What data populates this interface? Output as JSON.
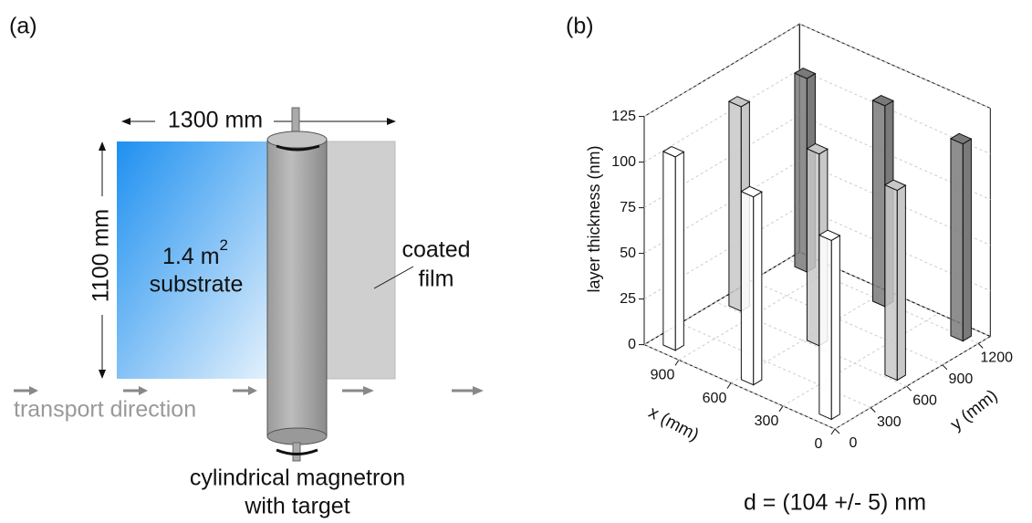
{
  "panel_a": {
    "label": "(a)",
    "width_label": "1300 mm",
    "height_label": "1100 mm",
    "area": "1.4 m",
    "area_exponent": "2",
    "substrate": "substrate",
    "coated_lines": [
      "coated",
      "film"
    ],
    "transport": "transport direction",
    "magnetron_lines": [
      "cylindrical magnetron",
      "with target"
    ]
  },
  "chart_data": {
    "type": "bar3d",
    "label": "(b)",
    "zlabel": "layer thickness (nm)",
    "xlabel": "x (mm)",
    "ylabel": "y (mm)",
    "annotation": "d = (104 +/- 5) nm",
    "xlim": [
      0,
      1100
    ],
    "ylim": [
      0,
      1300
    ],
    "zlim": [
      0,
      125
    ],
    "xticks": [
      0,
      300,
      600,
      900
    ],
    "yticks": [
      0,
      300,
      600,
      900,
      1200
    ],
    "zticks": [
      0,
      25,
      50,
      75,
      100,
      125
    ],
    "series": [
      {
        "color": "#ffffff",
        "x": [
          100,
          550,
          1000
        ],
        "y": [
          100,
          100,
          100
        ],
        "values": [
          98,
          103,
          106
        ]
      },
      {
        "color": "#c8c8c8",
        "x": [
          100,
          550,
          1000
        ],
        "y": [
          650,
          650,
          650
        ],
        "values": [
          104,
          105,
          112
        ]
      },
      {
        "color": "#7a7a7a",
        "x": [
          100,
          550,
          1000
        ],
        "y": [
          1200,
          1200,
          1200
        ],
        "values": [
          108,
          110,
          106
        ]
      }
    ]
  }
}
